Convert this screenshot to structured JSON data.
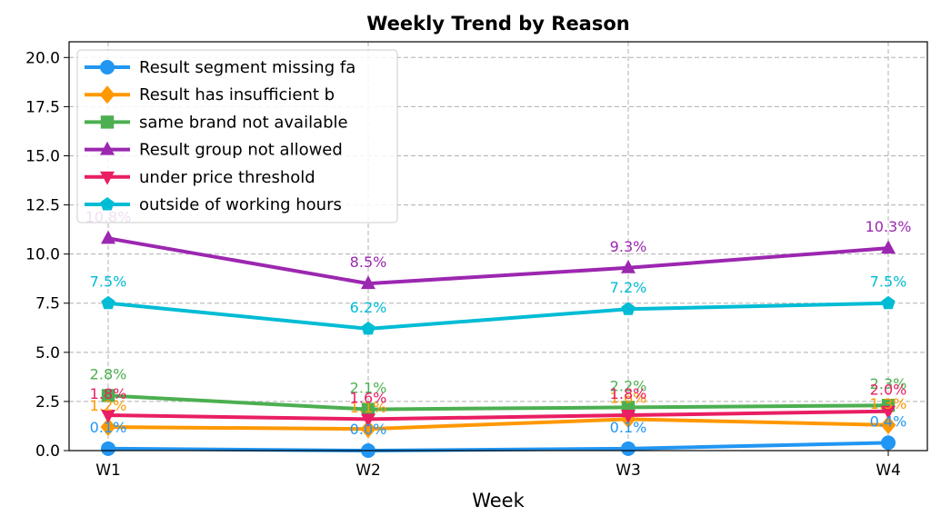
{
  "chart_data": {
    "type": "line",
    "title": "Weekly Trend by Reason",
    "xlabel": "Week",
    "ylabel": "",
    "categories": [
      "W1",
      "W2",
      "W3",
      "W4"
    ],
    "ylim": [
      0,
      20.8
    ],
    "yticks": [
      "0.0",
      "2.5",
      "5.0",
      "7.5",
      "10.0",
      "12.5",
      "15.0",
      "17.5",
      "20.0"
    ],
    "grid": true,
    "legend_position": "top-left",
    "series": [
      {
        "name": "Result segment missing fa",
        "color": "#2196F3",
        "marker": "circle",
        "values": [
          0.1,
          0.0,
          0.1,
          0.4
        ],
        "labels": [
          "0.1%",
          "0.0%",
          "0.1%",
          "0.4%"
        ]
      },
      {
        "name": "Result has insufficient b",
        "color": "#FF9800",
        "marker": "diamond",
        "values": [
          1.2,
          1.1,
          1.6,
          1.3
        ],
        "labels": [
          "1.2%",
          "1.1%",
          "1.6%",
          "1.3%"
        ]
      },
      {
        "name": "same brand not available",
        "color": "#4CAF50",
        "marker": "square",
        "values": [
          2.8,
          2.1,
          2.2,
          2.3
        ],
        "labels": [
          "2.8%",
          "2.1%",
          "2.2%",
          "2.3%"
        ]
      },
      {
        "name": "Result group not allowed",
        "color": "#9C27B0",
        "marker": "triangle-up",
        "values": [
          10.8,
          8.5,
          9.3,
          10.3
        ],
        "labels": [
          "10.8%",
          "8.5%",
          "9.3%",
          "10.3%"
        ]
      },
      {
        "name": "under price threshold",
        "color": "#E91E63",
        "marker": "triangle-down",
        "values": [
          1.8,
          1.6,
          1.8,
          2.0
        ],
        "labels": [
          "1.8%",
          "1.6%",
          "1.8%",
          "2.0%"
        ]
      },
      {
        "name": "outside of working hours",
        "color": "#00BCD4",
        "marker": "pentagon",
        "values": [
          7.5,
          6.2,
          7.2,
          7.5
        ],
        "labels": [
          "7.5%",
          "6.2%",
          "7.2%",
          "7.5%"
        ]
      }
    ]
  }
}
